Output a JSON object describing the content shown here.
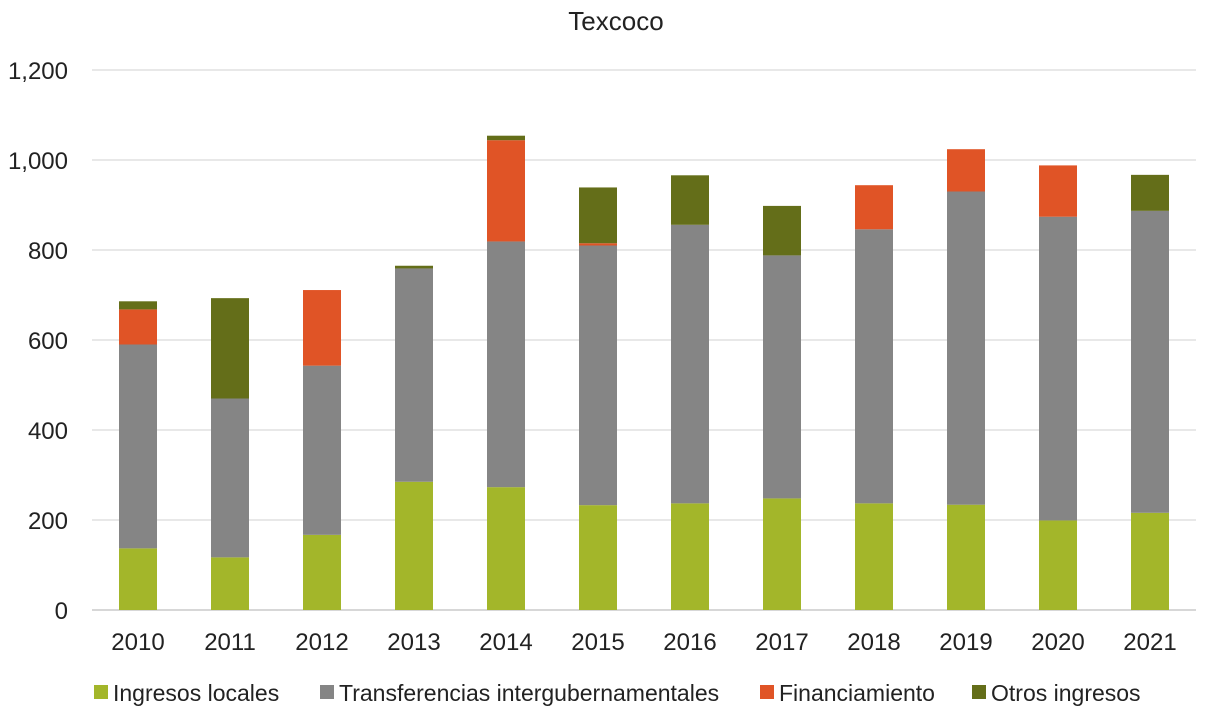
{
  "chart_data": {
    "type": "bar",
    "stacked": true,
    "title": "Texcoco",
    "xlabel": "",
    "ylabel": "",
    "ylim": [
      0,
      1200
    ],
    "yticks": [
      "0",
      "200",
      "400",
      "600",
      "800",
      "1,000",
      "1,200"
    ],
    "ytick_values": [
      0,
      200,
      400,
      600,
      800,
      1000,
      1200
    ],
    "grid": true,
    "legend_position": "bottom",
    "categories": [
      "2010",
      "2011",
      "2012",
      "2013",
      "2014",
      "2015",
      "2016",
      "2017",
      "2018",
      "2019",
      "2020",
      "2021"
    ],
    "series": [
      {
        "name": "Ingresos locales",
        "color": "#a3b62a",
        "values": [
          137,
          117,
          167,
          285,
          273,
          233,
          237,
          248,
          237,
          234,
          199,
          216
        ]
      },
      {
        "name": "Transferencias intergubernamentales",
        "color": "#858585",
        "values": [
          453,
          353,
          376,
          474,
          546,
          577,
          619,
          540,
          609,
          696,
          675,
          671
        ]
      },
      {
        "name": "Financiamiento",
        "color": "#e05426",
        "values": [
          78,
          0,
          168,
          0,
          225,
          5,
          0,
          0,
          98,
          94,
          114,
          0
        ]
      },
      {
        "name": "Otros ingresos",
        "color": "#646e19",
        "values": [
          18,
          223,
          0,
          6,
          10,
          124,
          110,
          110,
          0,
          0,
          0,
          80
        ]
      }
    ]
  }
}
